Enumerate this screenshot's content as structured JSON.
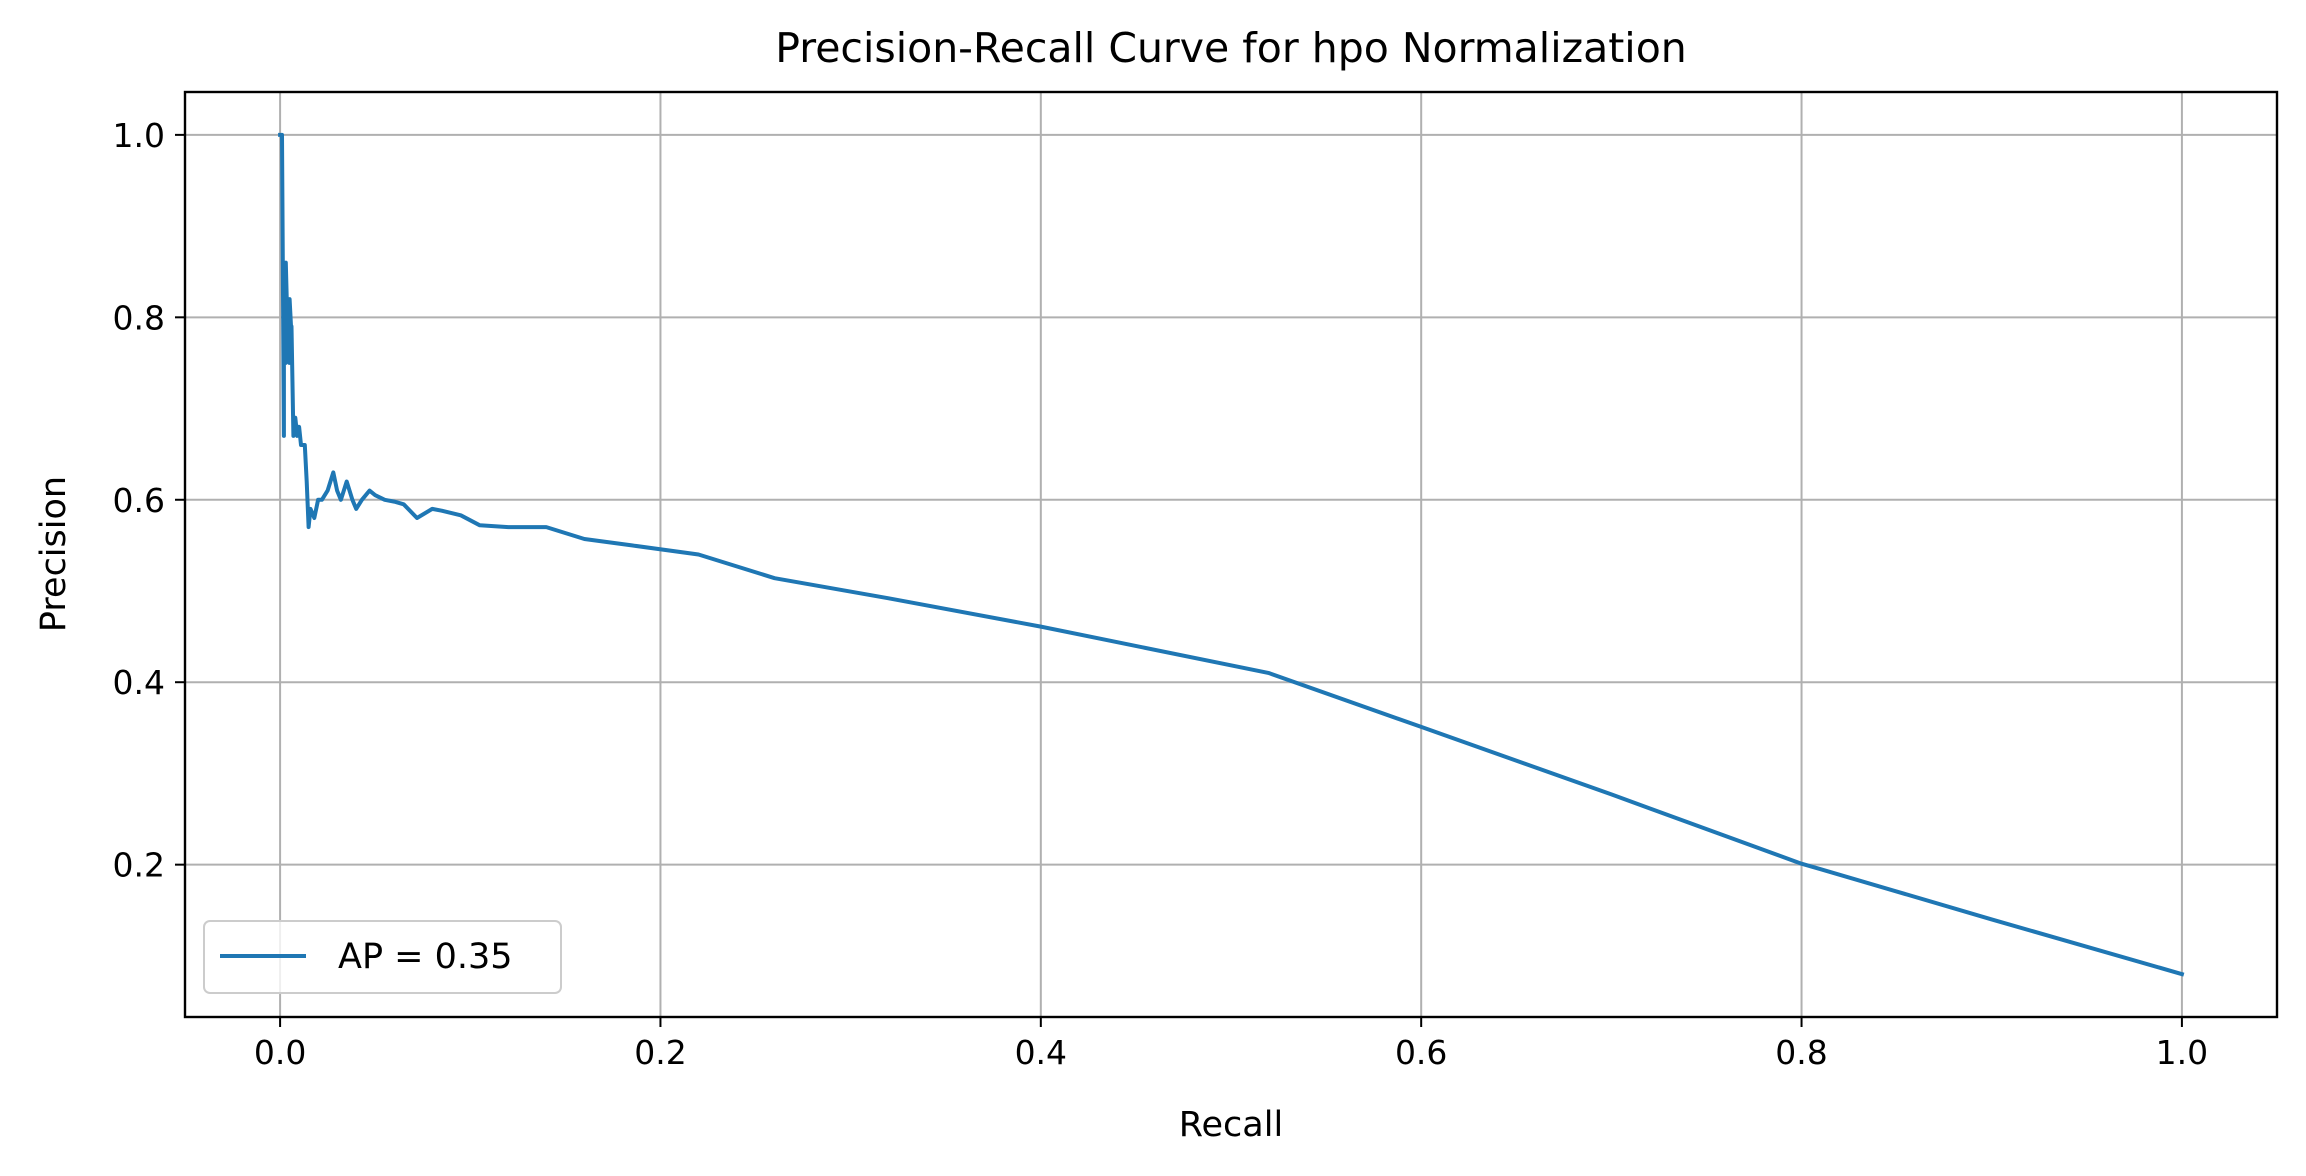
{
  "chart_data": {
    "type": "line",
    "title": "Precision-Recall Curve for hpo Normalization",
    "xlabel": "Recall",
    "ylabel": "Precision",
    "xlim": [
      -0.05,
      1.05
    ],
    "ylim": [
      0.033,
      1.047
    ],
    "xticks": [
      0.0,
      0.2,
      0.4,
      0.6,
      0.8,
      1.0
    ],
    "xtick_labels": [
      "0.0",
      "0.2",
      "0.4",
      "0.6",
      "0.8",
      "1.0"
    ],
    "yticks": [
      0.2,
      0.4,
      0.6,
      0.8,
      1.0
    ],
    "ytick_labels": [
      "0.2",
      "0.4",
      "0.6",
      "0.8",
      "1.0"
    ],
    "grid": true,
    "legend_position": "lower-left",
    "series": [
      {
        "name": "AP = 0.35",
        "color": "#1f77b4",
        "x": [
          0.0,
          0.001,
          0.002,
          0.002,
          0.003,
          0.003,
          0.004,
          0.004,
          0.005,
          0.005,
          0.006,
          0.006,
          0.007,
          0.008,
          0.009,
          0.01,
          0.011,
          0.012,
          0.013,
          0.014,
          0.015,
          0.016,
          0.018,
          0.02,
          0.022,
          0.025,
          0.028,
          0.03,
          0.032,
          0.035,
          0.038,
          0.04,
          0.043,
          0.047,
          0.05,
          0.055,
          0.06,
          0.065,
          0.072,
          0.08,
          0.085,
          0.095,
          0.105,
          0.12,
          0.14,
          0.16,
          0.185,
          0.22,
          0.26,
          0.32,
          0.4,
          0.52,
          0.6,
          0.7,
          0.8,
          0.81,
          0.9,
          1.0
        ],
        "y": [
          1.0,
          1.0,
          0.67,
          0.86,
          0.75,
          0.86,
          0.78,
          0.82,
          0.75,
          0.82,
          0.78,
          0.79,
          0.67,
          0.69,
          0.67,
          0.68,
          0.66,
          0.66,
          0.66,
          0.62,
          0.57,
          0.59,
          0.58,
          0.6,
          0.6,
          0.61,
          0.63,
          0.61,
          0.6,
          0.62,
          0.6,
          0.59,
          0.6,
          0.61,
          0.605,
          0.6,
          0.598,
          0.595,
          0.58,
          0.59,
          0.588,
          0.583,
          0.572,
          0.57,
          0.57,
          0.557,
          0.55,
          0.54,
          0.514,
          0.492,
          0.461,
          0.41,
          0.351,
          0.277,
          0.201,
          0.195,
          0.14,
          0.08
        ]
      }
    ]
  }
}
